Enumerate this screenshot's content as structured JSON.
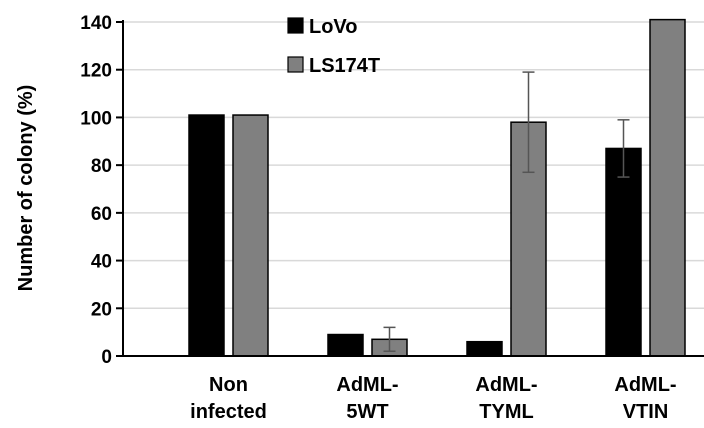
{
  "chart_data": {
    "type": "bar",
    "title": "",
    "xlabel": "",
    "ylabel": "Number of colony (%)",
    "ylim": [
      0,
      140
    ],
    "yticks": [
      0,
      20,
      40,
      60,
      80,
      100,
      120,
      140
    ],
    "grid": true,
    "legend_position": "top-center",
    "categories": [
      [
        "Non",
        "infected"
      ],
      [
        "AdML-",
        "5WT"
      ],
      [
        "AdML-",
        "TYML"
      ],
      [
        "AdML-",
        "VTIN"
      ]
    ],
    "series": [
      {
        "name": "LoVo",
        "color": "#000000",
        "values": [
          101,
          9,
          6,
          87
        ],
        "errors": [
          0,
          0,
          0,
          12
        ]
      },
      {
        "name": "LS174T",
        "color": "#808080",
        "values": [
          101,
          7,
          98,
          141
        ],
        "errors": [
          0,
          5,
          21,
          0
        ]
      }
    ]
  }
}
